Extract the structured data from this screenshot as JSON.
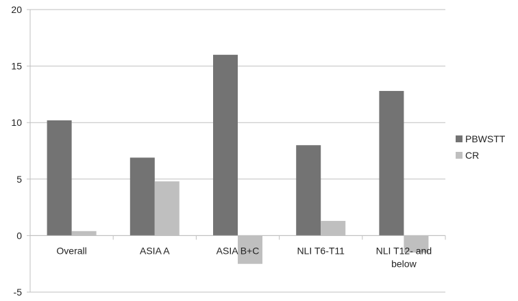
{
  "chart_data": {
    "type": "bar",
    "title": "",
    "xlabel": "",
    "ylabel": "",
    "ylim": [
      -5,
      20
    ],
    "yticks": [
      -5,
      0,
      5,
      10,
      15,
      20
    ],
    "grid": true,
    "legend_position": "right",
    "categories": [
      "Overall",
      "ASIA A",
      "ASIA B+C",
      "NLI T6-T11",
      "NLI T12- and below"
    ],
    "series": [
      {
        "name": "PBWSTT",
        "color": "#737373",
        "values": [
          10.2,
          6.9,
          16.0,
          8.0,
          12.8
        ]
      },
      {
        "name": "CR",
        "color": "#bfbfbf",
        "values": [
          0.4,
          4.8,
          -2.5,
          1.3,
          -1.5
        ]
      }
    ]
  }
}
